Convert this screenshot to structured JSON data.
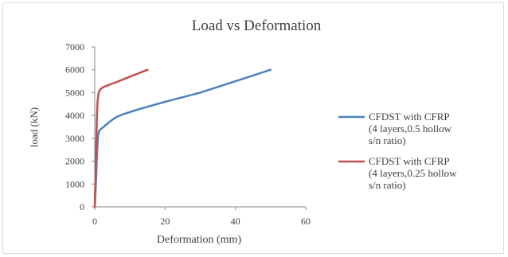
{
  "chart_data": {
    "type": "line",
    "title": "Load vs Deformation",
    "xlabel": "Deformation (mm)",
    "ylabel": "load (kN)",
    "xlim": [
      0,
      60
    ],
    "ylim": [
      0,
      7000
    ],
    "xticks": [
      0,
      20,
      40,
      60
    ],
    "yticks": [
      0,
      1000,
      2000,
      3000,
      4000,
      5000,
      6000,
      7000
    ],
    "grid": false,
    "legend_position": "right",
    "series": [
      {
        "name": "CFDST with CFRP (4 layers,0.5 hollow s/n ratio)",
        "legend_lines": [
          "CFDST with CFRP",
          "(4 layers,0.5 hollow",
          "s/n ratio)"
        ],
        "color": "#4f81bd",
        "points": [
          [
            0,
            0
          ],
          [
            0.3,
            900
          ],
          [
            0.6,
            2200
          ],
          [
            0.9,
            3100
          ],
          [
            1.3,
            3350
          ],
          [
            2.5,
            3500
          ],
          [
            4,
            3700
          ],
          [
            6,
            3920
          ],
          [
            8,
            4050
          ],
          [
            12,
            4250
          ],
          [
            20,
            4600
          ],
          [
            30,
            5000
          ],
          [
            40,
            5500
          ],
          [
            50,
            6000
          ]
        ]
      },
      {
        "name": "CFDST with CFRP (4 layers,0.25 hollow s/n ratio)",
        "legend_lines": [
          "CFDST with CFRP",
          "(4 layers,0.25 hollow",
          "s/n ratio)"
        ],
        "color": "#c0504d",
        "points": [
          [
            0,
            0
          ],
          [
            0.2,
            1200
          ],
          [
            0.4,
            2700
          ],
          [
            0.6,
            3900
          ],
          [
            0.8,
            4600
          ],
          [
            1.1,
            5000
          ],
          [
            1.6,
            5150
          ],
          [
            2.5,
            5250
          ],
          [
            4,
            5340
          ],
          [
            6,
            5450
          ],
          [
            10,
            5700
          ],
          [
            15,
            6000
          ]
        ]
      }
    ]
  }
}
